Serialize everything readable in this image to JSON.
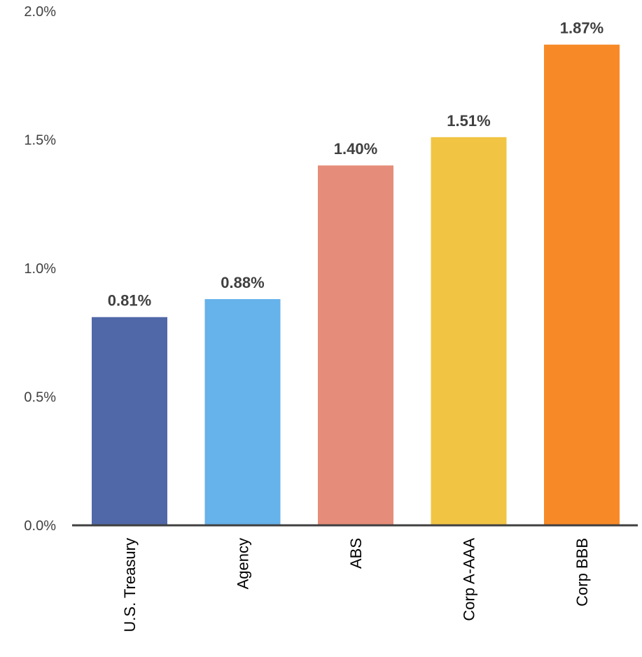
{
  "chart_data": {
    "type": "bar",
    "categories": [
      "U.S. Treasury",
      "Agency",
      "ABS",
      "Corp A-AAA",
      "Corp BBB"
    ],
    "values": [
      0.81,
      0.88,
      1.4,
      1.51,
      1.87
    ],
    "data_labels": [
      "0.81%",
      "0.88%",
      "1.40%",
      "1.51%",
      "1.87%"
    ],
    "colors": [
      "#5068A8",
      "#66B2EA",
      "#E58D7A",
      "#F2C444",
      "#F78A27"
    ],
    "ylim": [
      0,
      2.0
    ],
    "yticks": [
      0,
      0.5,
      1.0,
      1.5,
      2.0
    ],
    "ytick_labels": [
      "0.0%",
      "0.5%",
      "1.0%",
      "1.5%",
      "2.0%"
    ],
    "title": "",
    "xlabel": "",
    "ylabel": "",
    "grid": false,
    "legend": "none"
  }
}
